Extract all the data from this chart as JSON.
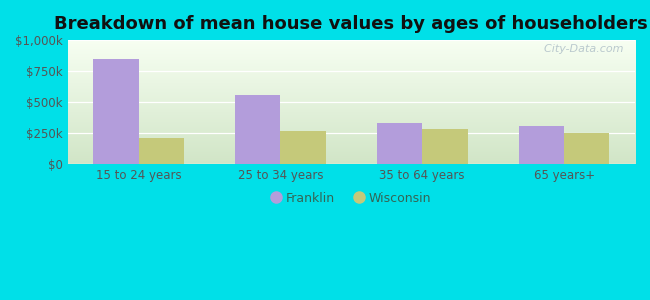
{
  "title": "Breakdown of mean house values by ages of householders",
  "categories": [
    "15 to 24 years",
    "25 to 34 years",
    "35 to 64 years",
    "65 years+"
  ],
  "franklin_values": [
    850000,
    560000,
    330000,
    305000
  ],
  "wisconsin_values": [
    210000,
    265000,
    280000,
    255000
  ],
  "franklin_color": "#b39ddb",
  "wisconsin_color": "#c5c97a",
  "ylim": [
    0,
    1000000
  ],
  "yticks": [
    0,
    250000,
    500000,
    750000,
    1000000
  ],
  "ytick_labels": [
    "$0",
    "$250k",
    "$500k",
    "$750k",
    "$1,000k"
  ],
  "legend_labels": [
    "Franklin",
    "Wisconsin"
  ],
  "background_outer": "#00e0e8",
  "title_fontsize": 13,
  "bar_width": 0.32,
  "watermark": "  City-Data.com"
}
